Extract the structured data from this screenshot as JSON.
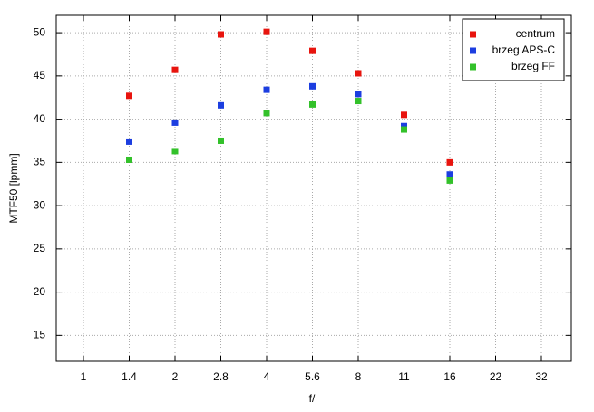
{
  "chart_data": {
    "type": "scatter",
    "x_label": "f/",
    "y_label": "MTF50 [lpmm]",
    "categories": [
      "1",
      "1.4",
      "2",
      "2.8",
      "4",
      "5.6",
      "8",
      "11",
      "16",
      "22",
      "32"
    ],
    "series": [
      {
        "name": "centrum",
        "color": "#e8140e",
        "values": [
          null,
          42.7,
          45.7,
          49.8,
          50.1,
          47.9,
          45.3,
          40.5,
          35.0,
          null,
          null
        ]
      },
      {
        "name": "brzeg APS-C",
        "color": "#1c3ee0",
        "values": [
          null,
          37.4,
          39.6,
          41.6,
          43.4,
          43.8,
          42.9,
          39.2,
          33.6,
          null,
          null
        ]
      },
      {
        "name": "brzeg FF",
        "color": "#33c12a",
        "values": [
          null,
          35.3,
          36.3,
          37.5,
          40.7,
          41.7,
          42.1,
          38.8,
          32.9,
          null,
          null
        ]
      }
    ],
    "ylim": [
      12,
      52
    ],
    "yticks": [
      15,
      20,
      25,
      30,
      35,
      40,
      45,
      50
    ],
    "grid": true,
    "legend": "top-right"
  }
}
